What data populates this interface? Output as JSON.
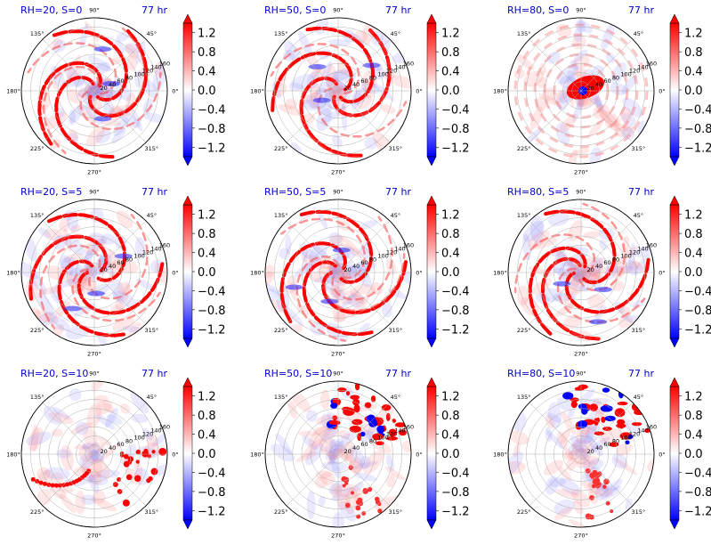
{
  "chart_data": {
    "type": "polar-heatmap",
    "rows": 3,
    "cols": 3,
    "panels": [
      {
        "title": "RH=20, S=0",
        "time": "77 hr",
        "pattern": "spiral",
        "seed": 11
      },
      {
        "title": "RH=50, S=0",
        "time": "77 hr",
        "pattern": "spiral",
        "seed": 23
      },
      {
        "title": "RH=80, S=0",
        "time": "77 hr",
        "pattern": "core",
        "seed": 37
      },
      {
        "title": "RH=20, S=5",
        "time": "77 hr",
        "pattern": "spiral",
        "seed": 41
      },
      {
        "title": "RH=50, S=5",
        "time": "77 hr",
        "pattern": "spiral",
        "seed": 53
      },
      {
        "title": "RH=80, S=5",
        "time": "77 hr",
        "pattern": "spiral",
        "seed": 67
      },
      {
        "title": "RH=20, S=10",
        "time": "77 hr",
        "pattern": "sparse",
        "seed": 71
      },
      {
        "title": "RH=50, S=10",
        "time": "77 hr",
        "pattern": "sheared",
        "seed": 83
      },
      {
        "title": "RH=80, S=10",
        "time": "77 hr",
        "pattern": "sheared",
        "seed": 97
      }
    ],
    "theta_tick_labels": [
      "0°",
      "45°",
      "90°",
      "135°",
      "180°",
      "225°",
      "270°",
      "315°"
    ],
    "r_tick_labels": [
      "20",
      "40",
      "60",
      "80",
      "100",
      "120",
      "140",
      "160"
    ],
    "r_max": 160,
    "colorbar": {
      "colormap": "bwr",
      "tick_labels": [
        "1.2",
        "0.8",
        "0.4",
        "0.0",
        "−0.4",
        "−0.8",
        "−1.2"
      ],
      "tick_values": [
        1.2,
        0.8,
        0.4,
        0.0,
        -0.4,
        -0.8,
        -1.2
      ],
      "range": [
        -1.4,
        1.4
      ],
      "extend": "both"
    },
    "colors": {
      "title": "#0000cc",
      "red": "#ff0000",
      "blue": "#0000ff",
      "grid": "#b0b0b0"
    }
  }
}
